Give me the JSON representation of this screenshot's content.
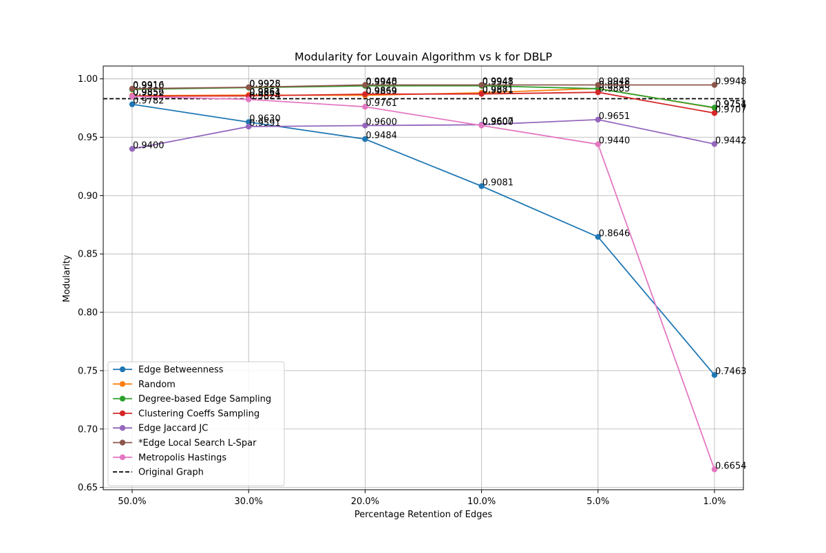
{
  "chart_data": {
    "type": "line",
    "title": "Modularity for Louvain Algorithm vs k for DBLP",
    "xlabel": "Percentage Retention of Edges",
    "ylabel": "Modularity",
    "categories": [
      "50.0%",
      "30.0%",
      "20.0%",
      "10.0%",
      "5.0%",
      "1.0%"
    ],
    "ylim": [
      0.648,
      1.011
    ],
    "yticks": [
      "0.65",
      "0.70",
      "0.75",
      "0.80",
      "0.85",
      "0.90",
      "0.95",
      "1.00"
    ],
    "grid": true,
    "legend_position": "lower-left",
    "series": [
      {
        "name": "Edge Betweenness",
        "color": "#1f77b4",
        "values": [
          0.9782,
          0.963,
          0.9484,
          0.9081,
          0.8646,
          0.7463
        ],
        "labels": [
          "0.9782",
          "0.9630",
          "0.9484",
          "0.9081",
          "0.8646",
          "0.7463"
        ]
      },
      {
        "name": "Random",
        "color": "#ff7f0e",
        "values": [
          0.9856,
          0.9861,
          0.9859,
          0.9881,
          0.9918,
          0.9751
        ],
        "labels": [
          "0.9856",
          "0.9861",
          "0.9859",
          "0.9881",
          "0.9918",
          "0.9751"
        ]
      },
      {
        "name": "Degree-based Edge Sampling",
        "color": "#2ca02c",
        "values": [
          0.991,
          0.9925,
          0.994,
          0.9941,
          0.9916,
          0.9754
        ],
        "labels": [
          "0.9910",
          "0.9925",
          "0.9940",
          "0.9941",
          "0.9916",
          "0.9754"
        ]
      },
      {
        "name": "Clustering Coeffs Sampling",
        "color": "#d62728",
        "values": [
          0.9852,
          0.9854,
          0.9869,
          0.9871,
          0.9885,
          0.9707
        ],
        "labels": [
          "0.9852",
          "0.9854",
          "0.9869",
          "0.9871",
          "0.9885",
          "0.9707"
        ]
      },
      {
        "name": "Edge Jaccard JC",
        "color": "#9467bd",
        "values": [
          0.94,
          0.9591,
          0.96,
          0.9607,
          0.9651,
          0.9442
        ],
        "labels": [
          "0.9400",
          "0.9591",
          "0.9600",
          "0.9607",
          "0.9651",
          "0.9442"
        ]
      },
      {
        "name": "*Edge Local Search L-Spar",
        "color": "#8c564b",
        "values": [
          0.9916,
          0.9928,
          0.9948,
          0.9948,
          0.9948,
          0.9948
        ],
        "labels": [
          "0.9916",
          "0.9928",
          "0.9948",
          "0.9948",
          "0.9948",
          "0.9948"
        ]
      },
      {
        "name": "Metropolis Hastings",
        "color": "#e377c2",
        "values": [
          0.985,
          0.9824,
          0.9761,
          0.96,
          0.944,
          0.6654
        ],
        "labels": [
          "",
          "0.9824",
          "0.9761",
          "0.9600",
          "0.9440",
          "0.6654"
        ]
      }
    ],
    "reference_line": {
      "name": "Original Graph",
      "value": 0.983,
      "color": "#000000",
      "style": "dashed"
    }
  }
}
